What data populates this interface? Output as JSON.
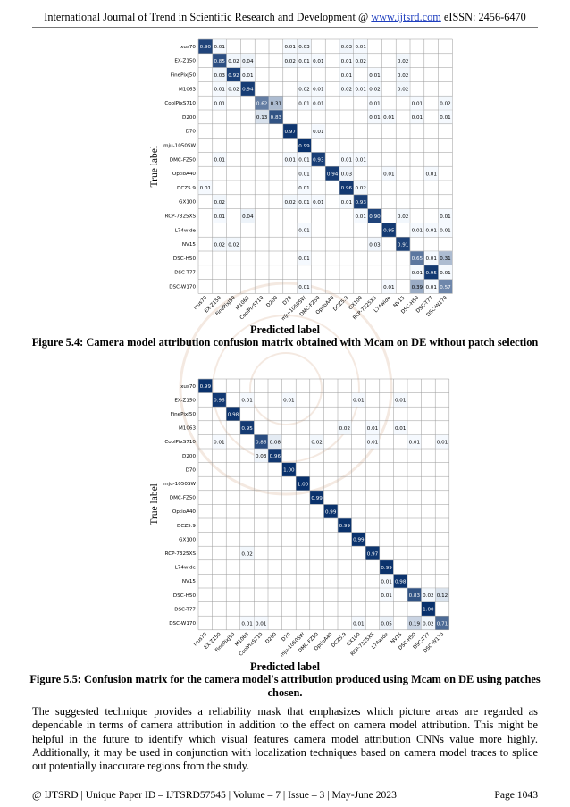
{
  "header": {
    "journal": "International Journal of Trend in Scientific Research and Development @ ",
    "url": "www.ijtsrd.com",
    "eissn": " eISSN: 2456-6470"
  },
  "labels": [
    "Ixus70",
    "EX-Z150",
    "FinePixJ50",
    "M1063",
    "CoolPixS710",
    "D200",
    "D70",
    "mju-1050SW",
    "DMC-FZ50",
    "OptioA40",
    "DCZ5.9",
    "GX100",
    "RCP-7325XS",
    "L74wide",
    "NV15",
    "DSC-H50",
    "DSC-T77",
    "DSC-W170"
  ],
  "figure1": {
    "ylabel": "True label",
    "xlabel": "Predicted label",
    "caption": "Figure 5.4: Camera model attribution confusion matrix obtained with Mcam on DE without patch selection",
    "cells": [
      [
        [
          0,
          0,
          "0.90"
        ],
        [
          0,
          1,
          "0.01"
        ],
        [
          0,
          6,
          "0.01"
        ],
        [
          0,
          7,
          "0.03"
        ],
        [
          0,
          10,
          "0.03"
        ],
        [
          0,
          11,
          "0.01"
        ]
      ],
      [
        [
          1,
          1,
          "0.85"
        ],
        [
          1,
          2,
          "0.02"
        ],
        [
          1,
          3,
          "0.04"
        ],
        [
          1,
          6,
          "0.02"
        ],
        [
          1,
          7,
          "0.01"
        ],
        [
          1,
          8,
          "0.01"
        ],
        [
          1,
          10,
          "0.01"
        ],
        [
          1,
          11,
          "0.02"
        ],
        [
          1,
          14,
          "0.02"
        ]
      ],
      [
        [
          2,
          1,
          "0.03"
        ],
        [
          2,
          2,
          "0.92"
        ],
        [
          2,
          3,
          "0.01"
        ],
        [
          2,
          10,
          "0.01"
        ],
        [
          2,
          12,
          "0.01"
        ],
        [
          2,
          14,
          "0.02"
        ]
      ],
      [
        [
          3,
          1,
          "0.01"
        ],
        [
          3,
          2,
          "0.02"
        ],
        [
          3,
          3,
          "0.94"
        ],
        [
          3,
          7,
          "0.02"
        ],
        [
          3,
          8,
          "0.01"
        ],
        [
          3,
          10,
          "0.02"
        ],
        [
          3,
          11,
          "0.01"
        ],
        [
          3,
          12,
          "0.02"
        ],
        [
          3,
          14,
          "0.02"
        ]
      ],
      [
        [
          4,
          1,
          "0.01"
        ],
        [
          4,
          4,
          "0.62"
        ],
        [
          4,
          5,
          "0.31"
        ],
        [
          4,
          7,
          "0.01"
        ],
        [
          4,
          8,
          "0.01"
        ],
        [
          4,
          12,
          "0.01"
        ],
        [
          4,
          15,
          "0.01"
        ],
        [
          4,
          17,
          "0.02"
        ]
      ],
      [
        [
          5,
          4,
          "0.13"
        ],
        [
          5,
          5,
          "0.83"
        ],
        [
          5,
          12,
          "0.01"
        ],
        [
          5,
          13,
          "0.01"
        ],
        [
          5,
          15,
          "0.01"
        ],
        [
          5,
          17,
          "0.01"
        ]
      ],
      [
        [
          6,
          6,
          "0.97"
        ],
        [
          6,
          8,
          "0.01"
        ]
      ],
      [
        [
          7,
          7,
          "0.99"
        ]
      ],
      [
        [
          8,
          1,
          "0.01"
        ],
        [
          8,
          6,
          "0.01"
        ],
        [
          8,
          7,
          "0.01"
        ],
        [
          8,
          8,
          "0.93"
        ],
        [
          8,
          10,
          "0.01"
        ],
        [
          8,
          11,
          "0.01"
        ]
      ],
      [
        [
          9,
          7,
          "0.01"
        ],
        [
          9,
          9,
          "0.94"
        ],
        [
          9,
          10,
          "0.03"
        ],
        [
          9,
          13,
          "0.01"
        ],
        [
          9,
          16,
          "0.01"
        ]
      ],
      [
        [
          10,
          0,
          "0.01"
        ],
        [
          10,
          7,
          "0.01"
        ],
        [
          10,
          10,
          "0.96"
        ],
        [
          10,
          11,
          "0.02"
        ]
      ],
      [
        [
          11,
          1,
          "0.02"
        ],
        [
          11,
          6,
          "0.02"
        ],
        [
          11,
          7,
          "0.01"
        ],
        [
          11,
          8,
          "0.01"
        ],
        [
          11,
          10,
          "0.01"
        ],
        [
          11,
          11,
          "0.93"
        ]
      ],
      [
        [
          12,
          1,
          "0.01"
        ],
        [
          12,
          3,
          "0.04"
        ],
        [
          12,
          11,
          "0.01"
        ],
        [
          12,
          12,
          "0.90"
        ],
        [
          12,
          14,
          "0.02"
        ],
        [
          12,
          17,
          "0.01"
        ]
      ],
      [
        [
          13,
          7,
          "0.01"
        ],
        [
          13,
          13,
          "0.95"
        ],
        [
          13,
          15,
          "0.01"
        ],
        [
          13,
          16,
          "0.01"
        ],
        [
          13,
          17,
          "0.01"
        ]
      ],
      [
        [
          14,
          1,
          "0.02"
        ],
        [
          14,
          2,
          "0.02"
        ],
        [
          14,
          12,
          "0.03"
        ],
        [
          14,
          14,
          "0.91"
        ]
      ],
      [
        [
          15,
          7,
          "0.01"
        ],
        [
          15,
          15,
          "0.65"
        ],
        [
          15,
          16,
          "0.01"
        ],
        [
          15,
          17,
          "0.31"
        ]
      ],
      [
        [
          16,
          15,
          "0.01"
        ],
        [
          16,
          16,
          "0.95"
        ],
        [
          16,
          17,
          "0.01"
        ]
      ],
      [
        [
          17,
          7,
          "0.01"
        ],
        [
          17,
          13,
          "0.01"
        ],
        [
          17,
          15,
          "0.39"
        ],
        [
          17,
          16,
          "0.01"
        ],
        [
          17,
          17,
          "0.57"
        ]
      ]
    ]
  },
  "figure2": {
    "ylabel": "True label",
    "xlabel": "Predicted label",
    "caption": "Figure 5.5: Confusion matrix for the camera model's attribution produced using Mcam on DE using patches chosen.",
    "cells": [
      [
        [
          0,
          0,
          "0.99"
        ]
      ],
      [
        [
          1,
          1,
          "0.96"
        ],
        [
          1,
          3,
          "0.01"
        ],
        [
          1,
          6,
          "0.01"
        ],
        [
          1,
          11,
          "0.01"
        ],
        [
          1,
          14,
          "0.01"
        ]
      ],
      [
        [
          2,
          2,
          "0.98"
        ]
      ],
      [
        [
          3,
          3,
          "0.95"
        ],
        [
          3,
          10,
          "0.02"
        ],
        [
          3,
          12,
          "0.01"
        ],
        [
          3,
          14,
          "0.01"
        ]
      ],
      [
        [
          4,
          1,
          "0.01"
        ],
        [
          4,
          4,
          "0.86"
        ],
        [
          4,
          5,
          "0.08"
        ],
        [
          4,
          8,
          "0.02"
        ],
        [
          4,
          12,
          "0.01"
        ],
        [
          4,
          15,
          "0.01"
        ],
        [
          4,
          17,
          "0.01"
        ]
      ],
      [
        [
          5,
          4,
          "0.03"
        ],
        [
          5,
          5,
          "0.96"
        ]
      ],
      [
        [
          6,
          6,
          "1.00"
        ]
      ],
      [
        [
          7,
          7,
          "1.00"
        ]
      ],
      [
        [
          8,
          8,
          "0.99"
        ]
      ],
      [
        [
          9,
          9,
          "0.99"
        ]
      ],
      [
        [
          10,
          10,
          "0.99"
        ]
      ],
      [
        [
          11,
          11,
          "0.99"
        ]
      ],
      [
        [
          12,
          3,
          "0.02"
        ],
        [
          12,
          12,
          "0.97"
        ]
      ],
      [
        [
          13,
          13,
          "0.99"
        ]
      ],
      [
        [
          14,
          13,
          "0.01"
        ],
        [
          14,
          14,
          "0.98"
        ]
      ],
      [
        [
          15,
          13,
          "0.01"
        ],
        [
          15,
          15,
          "0.83"
        ],
        [
          15,
          16,
          "0.02"
        ],
        [
          15,
          17,
          "0.12"
        ]
      ],
      [
        [
          16,
          16,
          "1.00"
        ]
      ],
      [
        [
          17,
          3,
          "0.01"
        ],
        [
          17,
          4,
          "0.01"
        ],
        [
          17,
          11,
          "0.01"
        ],
        [
          17,
          13,
          "0.05"
        ],
        [
          17,
          15,
          "0.19"
        ],
        [
          17,
          16,
          "0.02"
        ],
        [
          17,
          17,
          "0.71"
        ]
      ]
    ]
  },
  "body": "The suggested technique provides a reliability mask that emphasizes which picture areas are regarded as dependable in terms of camera attribution in addition to the effect on camera model attribution. This might be helpful in the future to identify which visual features camera model attribution CNNs value more highly. Additionally, it may be used in conjunction with localization techniques based on camera model traces to splice out potentially inaccurate regions from the study.",
  "footer": {
    "left": "@ IJTSRD  |  Unique Paper ID – IJTSRD57545  |  Volume – 7  |  Issue – 3  |  May-June 2023",
    "right": "Page 1043"
  }
}
